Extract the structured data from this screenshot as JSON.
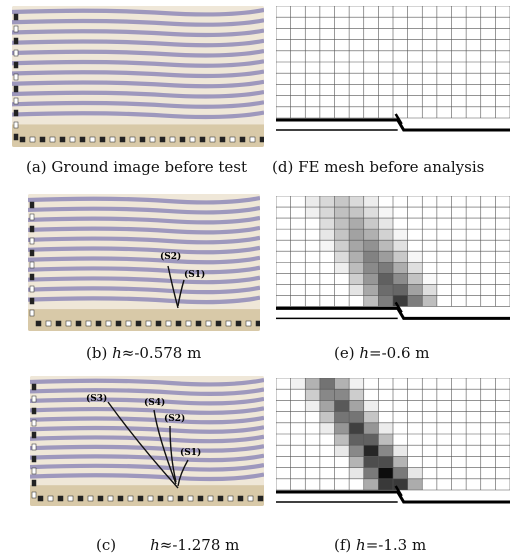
{
  "panels": {
    "a": {
      "caption": "(a) Ground image before test"
    },
    "b": {
      "caption_prefix": "(b) ",
      "caption_var": "h",
      "caption_rest": "≈-0.578 m",
      "labels": [
        "(S2)",
        "(S1)"
      ]
    },
    "c": {
      "caption_prefix": "(c)",
      "caption_var": "h",
      "caption_rest": "≈-1.278 m",
      "labels": [
        "(S3)",
        "(S4)",
        "(S2)",
        "(S1)"
      ]
    },
    "d": {
      "caption": "(d) FE mesh before analysis"
    },
    "e": {
      "caption_prefix": "(e) ",
      "caption_var": "h",
      "caption_rest": "=-0.6 m"
    },
    "f": {
      "caption_prefix": "(f) ",
      "caption_var": "h",
      "caption_rest": "=-1.3 m"
    }
  },
  "colors": {
    "sand_stripe": "#8f89b8",
    "sand_base": "#efe7d8",
    "mesh_line": "#555555",
    "fault_line": "#000000"
  }
}
